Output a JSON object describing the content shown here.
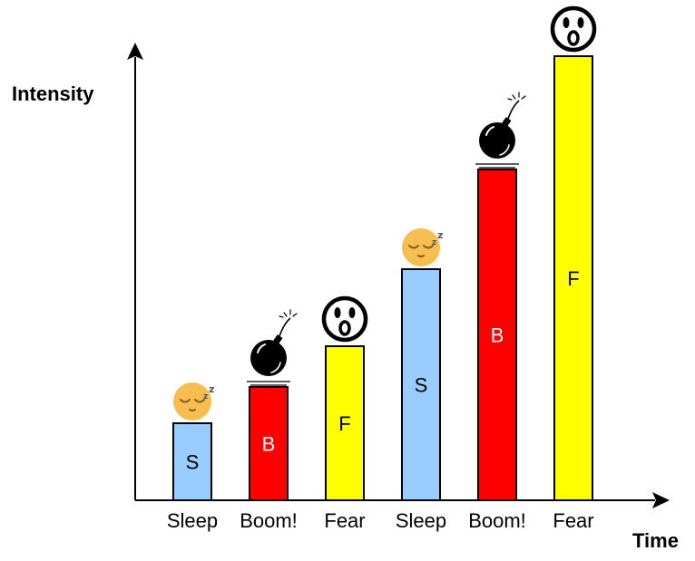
{
  "chart_data": {
    "type": "bar",
    "xlabel": "Time",
    "ylabel": "Intensity",
    "ylim": [
      0,
      10
    ],
    "grid": false,
    "categories": [
      "Sleep",
      "Boom!",
      "Fear",
      "Sleep",
      "Boom!",
      "Fear"
    ],
    "values": [
      1.7,
      2.5,
      3.4,
      5.1,
      7.3,
      9.8
    ],
    "bar_labels": [
      "S",
      "B",
      "F",
      "S",
      "B",
      "F"
    ],
    "bar_icons": [
      "sleeping-face-icon",
      "bomb-icon",
      "shocked-face-icon",
      "sleeping-face-icon",
      "bomb-icon",
      "shocked-face-icon"
    ],
    "colors": {
      "Sleep": "#99ccff",
      "Boom!": "#ff0000",
      "Fear": "#ffff00"
    },
    "label_colors": {
      "Sleep": "#000000",
      "Boom!": "#ffffff",
      "Fear": "#000000"
    }
  }
}
